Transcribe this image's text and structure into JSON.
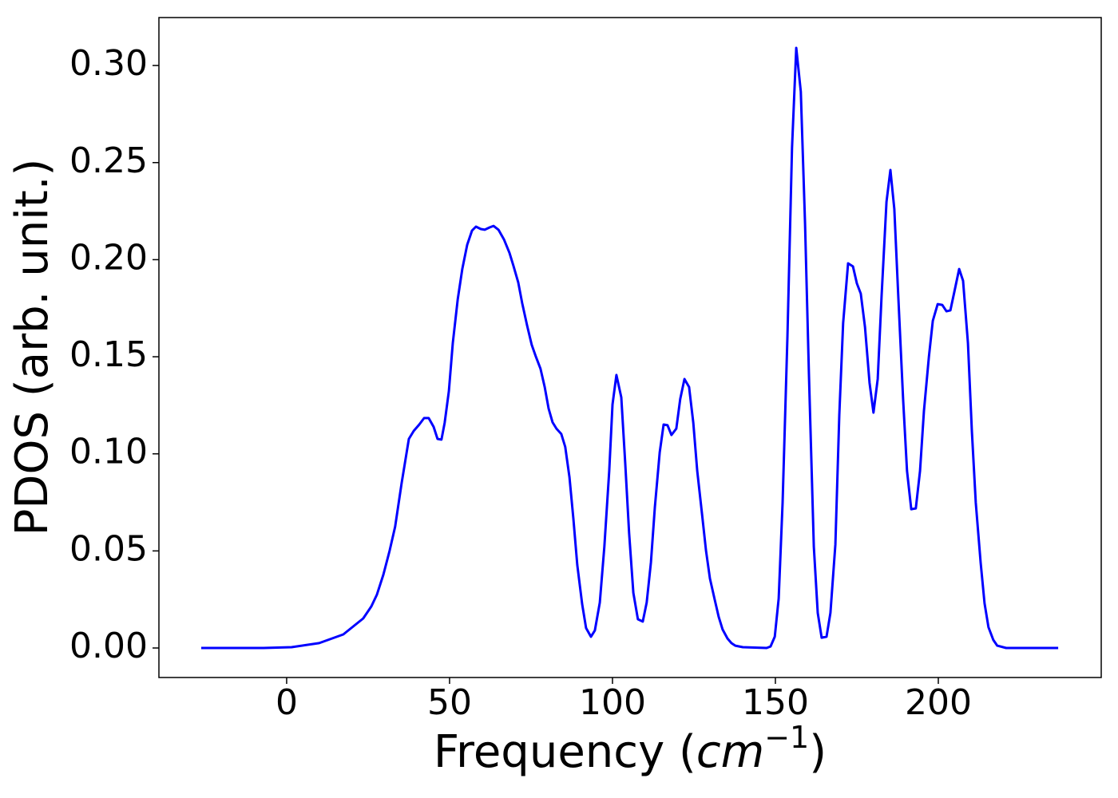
{
  "chart_data": {
    "type": "line",
    "xlabel": {
      "text": "Frequency (",
      "math": "cm",
      "sup": "−1",
      "close": ")"
    },
    "ylabel": "PDOS (arb. unit.)",
    "xlim": [
      -39.2,
      250.0
    ],
    "ylim": [
      -0.0152,
      0.3247
    ],
    "xticks": [
      0,
      50,
      100,
      150,
      200
    ],
    "yticks": [
      {
        "value": 0,
        "label": "0.00"
      },
      {
        "value": 0.05,
        "label": "0.05"
      },
      {
        "value": 0.1,
        "label": "0.10"
      },
      {
        "value": 0.15,
        "label": "0.15"
      },
      {
        "value": 0.2,
        "label": "0.20"
      },
      {
        "value": 0.25,
        "label": "0.25"
      },
      {
        "value": 0.3,
        "label": "0.30"
      }
    ],
    "series": [
      {
        "color": "#0000ff",
        "x": [
          -26.2,
          -7.1,
          1.5,
          10.0,
          17.4,
          23.5,
          26.0,
          27.7,
          29.7,
          31.6,
          33.3,
          35.3,
          37.5,
          39.0,
          40.7,
          42.2,
          43.6,
          45.1,
          46.3,
          47.5,
          48.5,
          49.8,
          51.0,
          52.5,
          53.9,
          55.4,
          56.9,
          58.1,
          59.6,
          60.8,
          62.3,
          63.5,
          65.0,
          66.7,
          68.4,
          69.6,
          71.1,
          72.3,
          73.8,
          75.2,
          76.5,
          77.9,
          79.2,
          80.4,
          81.6,
          82.8,
          84.3,
          85.5,
          86.8,
          88.0,
          89.2,
          90.7,
          91.9,
          93.4,
          94.6,
          96.1,
          97.5,
          99.0,
          100.0,
          101.2,
          102.7,
          103.9,
          105.1,
          106.4,
          107.8,
          109.3,
          110.5,
          111.8,
          113.0,
          114.5,
          115.7,
          116.9,
          118.1,
          119.6,
          120.8,
          122.1,
          123.5,
          124.8,
          126.0,
          127.5,
          128.7,
          129.9,
          131.4,
          132.6,
          133.8,
          135.3,
          136.5,
          137.7,
          140.0,
          147.3,
          148.5,
          149.8,
          151.0,
          152.2,
          153.7,
          155.1,
          156.4,
          157.8,
          159.1,
          160.3,
          161.8,
          163.0,
          164.2,
          165.7,
          166.9,
          168.4,
          169.6,
          170.8,
          172.3,
          173.8,
          175.0,
          176.2,
          177.5,
          178.9,
          180.1,
          181.4,
          182.6,
          184.1,
          185.3,
          186.5,
          187.7,
          189.2,
          190.4,
          191.7,
          193.1,
          194.4,
          195.6,
          197.1,
          198.3,
          199.8,
          201.2,
          202.5,
          203.7,
          204.9,
          206.4,
          207.6,
          209.1,
          210.3,
          211.5,
          213.0,
          214.2,
          215.4,
          216.9,
          218.1,
          220.8,
          236.8
        ],
        "values": [
          0,
          0,
          0.0004,
          0.0025,
          0.007,
          0.0152,
          0.0214,
          0.0275,
          0.0378,
          0.0501,
          0.0625,
          0.0851,
          0.1077,
          0.1118,
          0.1151,
          0.1184,
          0.1184,
          0.1139,
          0.1077,
          0.1073,
          0.1159,
          0.1323,
          0.157,
          0.1796,
          0.1952,
          0.2076,
          0.215,
          0.217,
          0.2158,
          0.2154,
          0.2166,
          0.2174,
          0.2154,
          0.2104,
          0.2035,
          0.1969,
          0.1882,
          0.1776,
          0.166,
          0.1562,
          0.15,
          0.1439,
          0.1344,
          0.1233,
          0.1163,
          0.113,
          0.1102,
          0.1036,
          0.088,
          0.0666,
          0.0427,
          0.0226,
          0.0103,
          0.0058,
          0.009,
          0.0234,
          0.0522,
          0.0912,
          0.1254,
          0.1406,
          0.1291,
          0.0954,
          0.0592,
          0.0284,
          0.0148,
          0.0136,
          0.0234,
          0.044,
          0.0723,
          0.1007,
          0.1151,
          0.1147,
          0.1097,
          0.113,
          0.1282,
          0.1385,
          0.1344,
          0.1159,
          0.0912,
          0.0686,
          0.0501,
          0.0358,
          0.0247,
          0.016,
          0.0095,
          0.0049,
          0.0025,
          0.0012,
          0.0004,
          0,
          0.0008,
          0.0058,
          0.0255,
          0.0748,
          0.1611,
          0.2577,
          0.3091,
          0.2865,
          0.2187,
          0.1406,
          0.0522,
          0.0181,
          0.0053,
          0.0058,
          0.0181,
          0.0534,
          0.12,
          0.1673,
          0.1981,
          0.1965,
          0.1878,
          0.1825,
          0.1652,
          0.1365,
          0.1212,
          0.1385,
          0.1817,
          0.2298,
          0.2462,
          0.2261,
          0.1817,
          0.1282,
          0.0912,
          0.0715,
          0.0719,
          0.0912,
          0.1221,
          0.15,
          0.1685,
          0.1771,
          0.1767,
          0.1734,
          0.1739,
          0.1833,
          0.1952,
          0.1891,
          0.157,
          0.1118,
          0.0748,
          0.044,
          0.023,
          0.0107,
          0.0041,
          0.0012,
          0,
          0
        ]
      }
    ]
  }
}
